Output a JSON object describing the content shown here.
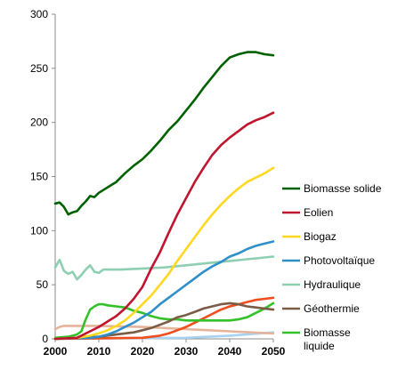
{
  "chart_data": {
    "type": "line",
    "title": "",
    "xlabel": "",
    "ylabel": "",
    "xlim": [
      2000,
      2050
    ],
    "ylim": [
      0,
      300
    ],
    "x_ticks": [
      2000,
      2010,
      2020,
      2030,
      2040,
      2050
    ],
    "y_ticks": [
      0,
      50,
      100,
      150,
      200,
      250,
      300
    ],
    "grid": false,
    "legend_position": "right",
    "series": [
      {
        "name": "Biomasse solide",
        "color": "#006100",
        "points": [
          [
            2000,
            125
          ],
          [
            2001,
            126
          ],
          [
            2002,
            122
          ],
          [
            2003,
            115
          ],
          [
            2004,
            117
          ],
          [
            2005,
            118
          ],
          [
            2006,
            123
          ],
          [
            2007,
            127
          ],
          [
            2008,
            132
          ],
          [
            2009,
            131
          ],
          [
            2010,
            135
          ],
          [
            2012,
            140
          ],
          [
            2014,
            145
          ],
          [
            2016,
            153
          ],
          [
            2018,
            160
          ],
          [
            2020,
            166
          ],
          [
            2022,
            174
          ],
          [
            2024,
            183
          ],
          [
            2026,
            193
          ],
          [
            2028,
            201
          ],
          [
            2030,
            211
          ],
          [
            2032,
            221
          ],
          [
            2034,
            232
          ],
          [
            2036,
            242
          ],
          [
            2038,
            252
          ],
          [
            2040,
            260
          ],
          [
            2042,
            263
          ],
          [
            2044,
            265
          ],
          [
            2046,
            265
          ],
          [
            2048,
            263
          ],
          [
            2050,
            262
          ]
        ]
      },
      {
        "name": "Eolien",
        "color": "#c0142f",
        "points": [
          [
            2000,
            0
          ],
          [
            2005,
            1
          ],
          [
            2008,
            7
          ],
          [
            2010,
            11
          ],
          [
            2012,
            16
          ],
          [
            2014,
            21
          ],
          [
            2016,
            28
          ],
          [
            2018,
            37
          ],
          [
            2020,
            48
          ],
          [
            2022,
            65
          ],
          [
            2024,
            80
          ],
          [
            2026,
            98
          ],
          [
            2028,
            115
          ],
          [
            2030,
            130
          ],
          [
            2032,
            145
          ],
          [
            2034,
            158
          ],
          [
            2036,
            170
          ],
          [
            2038,
            179
          ],
          [
            2040,
            186
          ],
          [
            2042,
            192
          ],
          [
            2044,
            198
          ],
          [
            2046,
            202
          ],
          [
            2048,
            205
          ],
          [
            2050,
            209
          ]
        ]
      },
      {
        "name": "Biogaz",
        "color": "#ffd81f",
        "points": [
          [
            2000,
            0
          ],
          [
            2005,
            1
          ],
          [
            2008,
            3
          ],
          [
            2010,
            5
          ],
          [
            2012,
            8
          ],
          [
            2014,
            12
          ],
          [
            2016,
            17
          ],
          [
            2018,
            24
          ],
          [
            2020,
            32
          ],
          [
            2022,
            40
          ],
          [
            2024,
            50
          ],
          [
            2026,
            60
          ],
          [
            2028,
            72
          ],
          [
            2030,
            83
          ],
          [
            2032,
            94
          ],
          [
            2034,
            105
          ],
          [
            2036,
            115
          ],
          [
            2038,
            124
          ],
          [
            2040,
            132
          ],
          [
            2042,
            139
          ],
          [
            2044,
            145
          ],
          [
            2046,
            149
          ],
          [
            2048,
            153
          ],
          [
            2050,
            158
          ]
        ]
      },
      {
        "name": "Photovoltaïque",
        "color": "#2e8fc9",
        "points": [
          [
            2000,
            0
          ],
          [
            2008,
            1
          ],
          [
            2010,
            2
          ],
          [
            2012,
            4
          ],
          [
            2014,
            7
          ],
          [
            2016,
            11
          ],
          [
            2018,
            15
          ],
          [
            2020,
            20
          ],
          [
            2022,
            25
          ],
          [
            2024,
            32
          ],
          [
            2026,
            38
          ],
          [
            2028,
            44
          ],
          [
            2030,
            50
          ],
          [
            2032,
            56
          ],
          [
            2034,
            62
          ],
          [
            2036,
            67
          ],
          [
            2038,
            71
          ],
          [
            2040,
            76
          ],
          [
            2042,
            79
          ],
          [
            2044,
            83
          ],
          [
            2046,
            86
          ],
          [
            2048,
            88
          ],
          [
            2050,
            90
          ]
        ]
      },
      {
        "name": "Hydraulique",
        "color": "#8ecfb2",
        "points": [
          [
            2000,
            66
          ],
          [
            2001,
            73
          ],
          [
            2002,
            63
          ],
          [
            2003,
            60
          ],
          [
            2004,
            62
          ],
          [
            2005,
            55
          ],
          [
            2006,
            59
          ],
          [
            2007,
            64
          ],
          [
            2008,
            68
          ],
          [
            2009,
            62
          ],
          [
            2010,
            61
          ],
          [
            2011,
            64
          ],
          [
            2012,
            64
          ],
          [
            2015,
            64
          ],
          [
            2020,
            65
          ],
          [
            2025,
            66
          ],
          [
            2030,
            68
          ],
          [
            2035,
            70
          ],
          [
            2040,
            72
          ],
          [
            2045,
            74
          ],
          [
            2050,
            76
          ]
        ]
      },
      {
        "name": "Géothermie",
        "color": "#7b5b45",
        "points": [
          [
            2000,
            0
          ],
          [
            2010,
            2
          ],
          [
            2014,
            4
          ],
          [
            2018,
            6
          ],
          [
            2020,
            8
          ],
          [
            2022,
            10
          ],
          [
            2024,
            13
          ],
          [
            2026,
            16
          ],
          [
            2028,
            20
          ],
          [
            2030,
            22
          ],
          [
            2032,
            25
          ],
          [
            2034,
            28
          ],
          [
            2036,
            30
          ],
          [
            2038,
            32
          ],
          [
            2040,
            33
          ],
          [
            2042,
            32
          ],
          [
            2044,
            30
          ],
          [
            2046,
            29
          ],
          [
            2048,
            28
          ],
          [
            2050,
            27
          ]
        ]
      },
      {
        "name": "Biomasse liquide",
        "color": "#33c12a",
        "points": [
          [
            2000,
            1
          ],
          [
            2003,
            2
          ],
          [
            2005,
            4
          ],
          [
            2006,
            7
          ],
          [
            2007,
            18
          ],
          [
            2008,
            27
          ],
          [
            2009,
            30
          ],
          [
            2010,
            32
          ],
          [
            2011,
            32
          ],
          [
            2012,
            31
          ],
          [
            2014,
            30
          ],
          [
            2016,
            29
          ],
          [
            2018,
            26
          ],
          [
            2020,
            24
          ],
          [
            2022,
            21
          ],
          [
            2024,
            19
          ],
          [
            2026,
            18
          ],
          [
            2028,
            18
          ],
          [
            2030,
            17
          ],
          [
            2032,
            17
          ],
          [
            2034,
            17
          ],
          [
            2036,
            17
          ],
          [
            2038,
            17
          ],
          [
            2040,
            17
          ],
          [
            2042,
            18
          ],
          [
            2044,
            20
          ],
          [
            2046,
            24
          ],
          [
            2048,
            28
          ],
          [
            2050,
            33
          ]
        ]
      },
      {
        "color": "#f04e1d",
        "points": [
          [
            2000,
            0
          ],
          [
            2020,
            1
          ],
          [
            2024,
            3
          ],
          [
            2026,
            5
          ],
          [
            2028,
            8
          ],
          [
            2030,
            11
          ],
          [
            2032,
            15
          ],
          [
            2034,
            19
          ],
          [
            2036,
            23
          ],
          [
            2038,
            27
          ],
          [
            2040,
            30
          ],
          [
            2042,
            32
          ],
          [
            2044,
            34
          ],
          [
            2046,
            36
          ],
          [
            2048,
            37
          ],
          [
            2050,
            38
          ]
        ]
      },
      {
        "color": "#e6b49b",
        "points": [
          [
            2000,
            9
          ],
          [
            2001,
            11
          ],
          [
            2002,
            12
          ],
          [
            2010,
            12
          ],
          [
            2020,
            11
          ],
          [
            2030,
            9
          ],
          [
            2040,
            7
          ],
          [
            2050,
            5
          ]
        ]
      },
      {
        "color": "#a8d3f0",
        "points": [
          [
            2000,
            0
          ],
          [
            2030,
            1
          ],
          [
            2040,
            3
          ],
          [
            2050,
            6
          ]
        ]
      }
    ]
  }
}
